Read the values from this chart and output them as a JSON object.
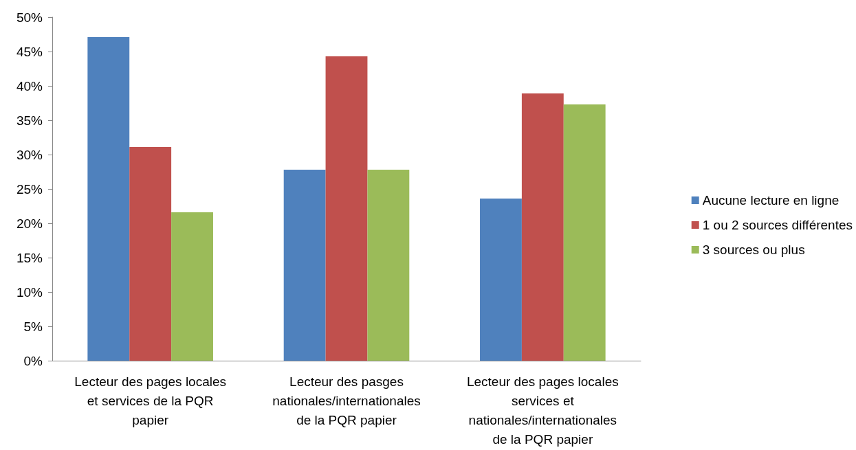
{
  "chart_data": {
    "type": "bar",
    "categories": [
      "Lecteur des pages locales et services de la PQR papier",
      "Lecteur des pasges nationales/internationales de la PQR papier",
      "Lecteur des pages locales services et nationales/internationales de la PQR papier"
    ],
    "series": [
      {
        "name": "Aucune lecture en ligne",
        "color": "#4f81bd",
        "values": [
          47.1,
          27.8,
          23.6
        ]
      },
      {
        "name": "1 ou 2 sources différentes",
        "color": "#c0504d",
        "values": [
          31.1,
          44.3,
          38.9
        ]
      },
      {
        "name": "3 sources ou plus",
        "color": "#9bbb59",
        "values": [
          21.6,
          27.8,
          37.3
        ]
      }
    ],
    "ylim": [
      0,
      50
    ],
    "yticks": [
      {
        "value": 0,
        "label": "0%"
      },
      {
        "value": 5,
        "label": "5%"
      },
      {
        "value": 10,
        "label": "10%"
      },
      {
        "value": 15,
        "label": "15%"
      },
      {
        "value": 20,
        "label": "20%"
      },
      {
        "value": 25,
        "label": "25%"
      },
      {
        "value": 30,
        "label": "30%"
      },
      {
        "value": 35,
        "label": "35%"
      },
      {
        "value": 40,
        "label": "40%"
      },
      {
        "value": 45,
        "label": "45%"
      },
      {
        "value": 50,
        "label": "50%"
      }
    ],
    "grid": false,
    "legend": "right"
  }
}
